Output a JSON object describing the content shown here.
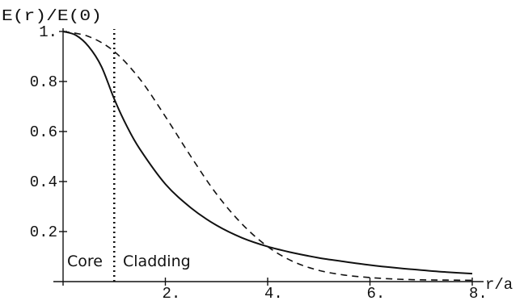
{
  "chart_data": {
    "type": "line",
    "ylabel": "E(r)/E(0)",
    "xlabel": "r/a",
    "xlim": [
      0,
      8
    ],
    "ylim": [
      0,
      1
    ],
    "x_ticks": [
      {
        "value": 2,
        "label": "2."
      },
      {
        "value": 4,
        "label": "4."
      },
      {
        "value": 6,
        "label": "6."
      },
      {
        "value": 8,
        "label": "8."
      }
    ],
    "y_ticks": [
      {
        "value": 0.2,
        "label": "0.2"
      },
      {
        "value": 0.4,
        "label": "0.4"
      },
      {
        "value": 0.6,
        "label": "0.6"
      },
      {
        "value": 0.8,
        "label": "0.8"
      },
      {
        "value": 1.0,
        "label": "1."
      }
    ],
    "series": [
      {
        "style": "solid",
        "x": [
          0,
          0.25,
          0.5,
          0.75,
          1.0,
          1.25,
          1.5,
          2.0,
          2.5,
          3.0,
          3.5,
          4.0,
          4.5,
          5.0,
          5.5,
          6.0,
          6.5,
          7.0,
          7.5,
          8.0
        ],
        "y": [
          1.0,
          0.985,
          0.94,
          0.86,
          0.73,
          0.62,
          0.53,
          0.39,
          0.295,
          0.225,
          0.175,
          0.14,
          0.115,
          0.095,
          0.08,
          0.066,
          0.055,
          0.046,
          0.038,
          0.032
        ]
      },
      {
        "style": "dashed",
        "x": [
          0,
          0.5,
          1.0,
          1.5,
          2.0,
          2.5,
          3.0,
          3.5,
          4.0,
          4.5,
          5.0,
          5.5,
          6.0,
          6.5,
          7.0,
          7.5,
          8.0
        ],
        "y": [
          1.0,
          0.98,
          0.92,
          0.81,
          0.66,
          0.5,
          0.35,
          0.23,
          0.14,
          0.08,
          0.045,
          0.026,
          0.016,
          0.01,
          0.007,
          0.006,
          0.005
        ]
      }
    ],
    "divider": {
      "x": 1.0
    },
    "annotations": {
      "left": "Core",
      "right": "Cladding"
    },
    "grid": false
  }
}
